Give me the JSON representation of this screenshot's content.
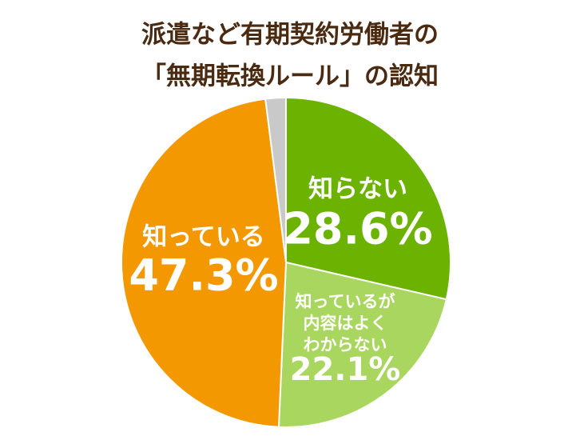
{
  "chart_data": {
    "type": "pie",
    "title": [
      "派遣など有期契約労働者の",
      "「無期転換ルール」の認知"
    ],
    "categories": [
      "知らない",
      "知っているが\n内容はよく\nわからない",
      "知っている",
      null
    ],
    "values": [
      28.6,
      22.1,
      47.3,
      2.0
    ],
    "value_labels": [
      "28.6%",
      "22.1%",
      "47.3%",
      null
    ],
    "colors": [
      "#6bb300",
      "#a9d65f",
      "#f39800",
      "#c9c9c9"
    ],
    "start_angle": 0,
    "direction": "clockwise"
  }
}
